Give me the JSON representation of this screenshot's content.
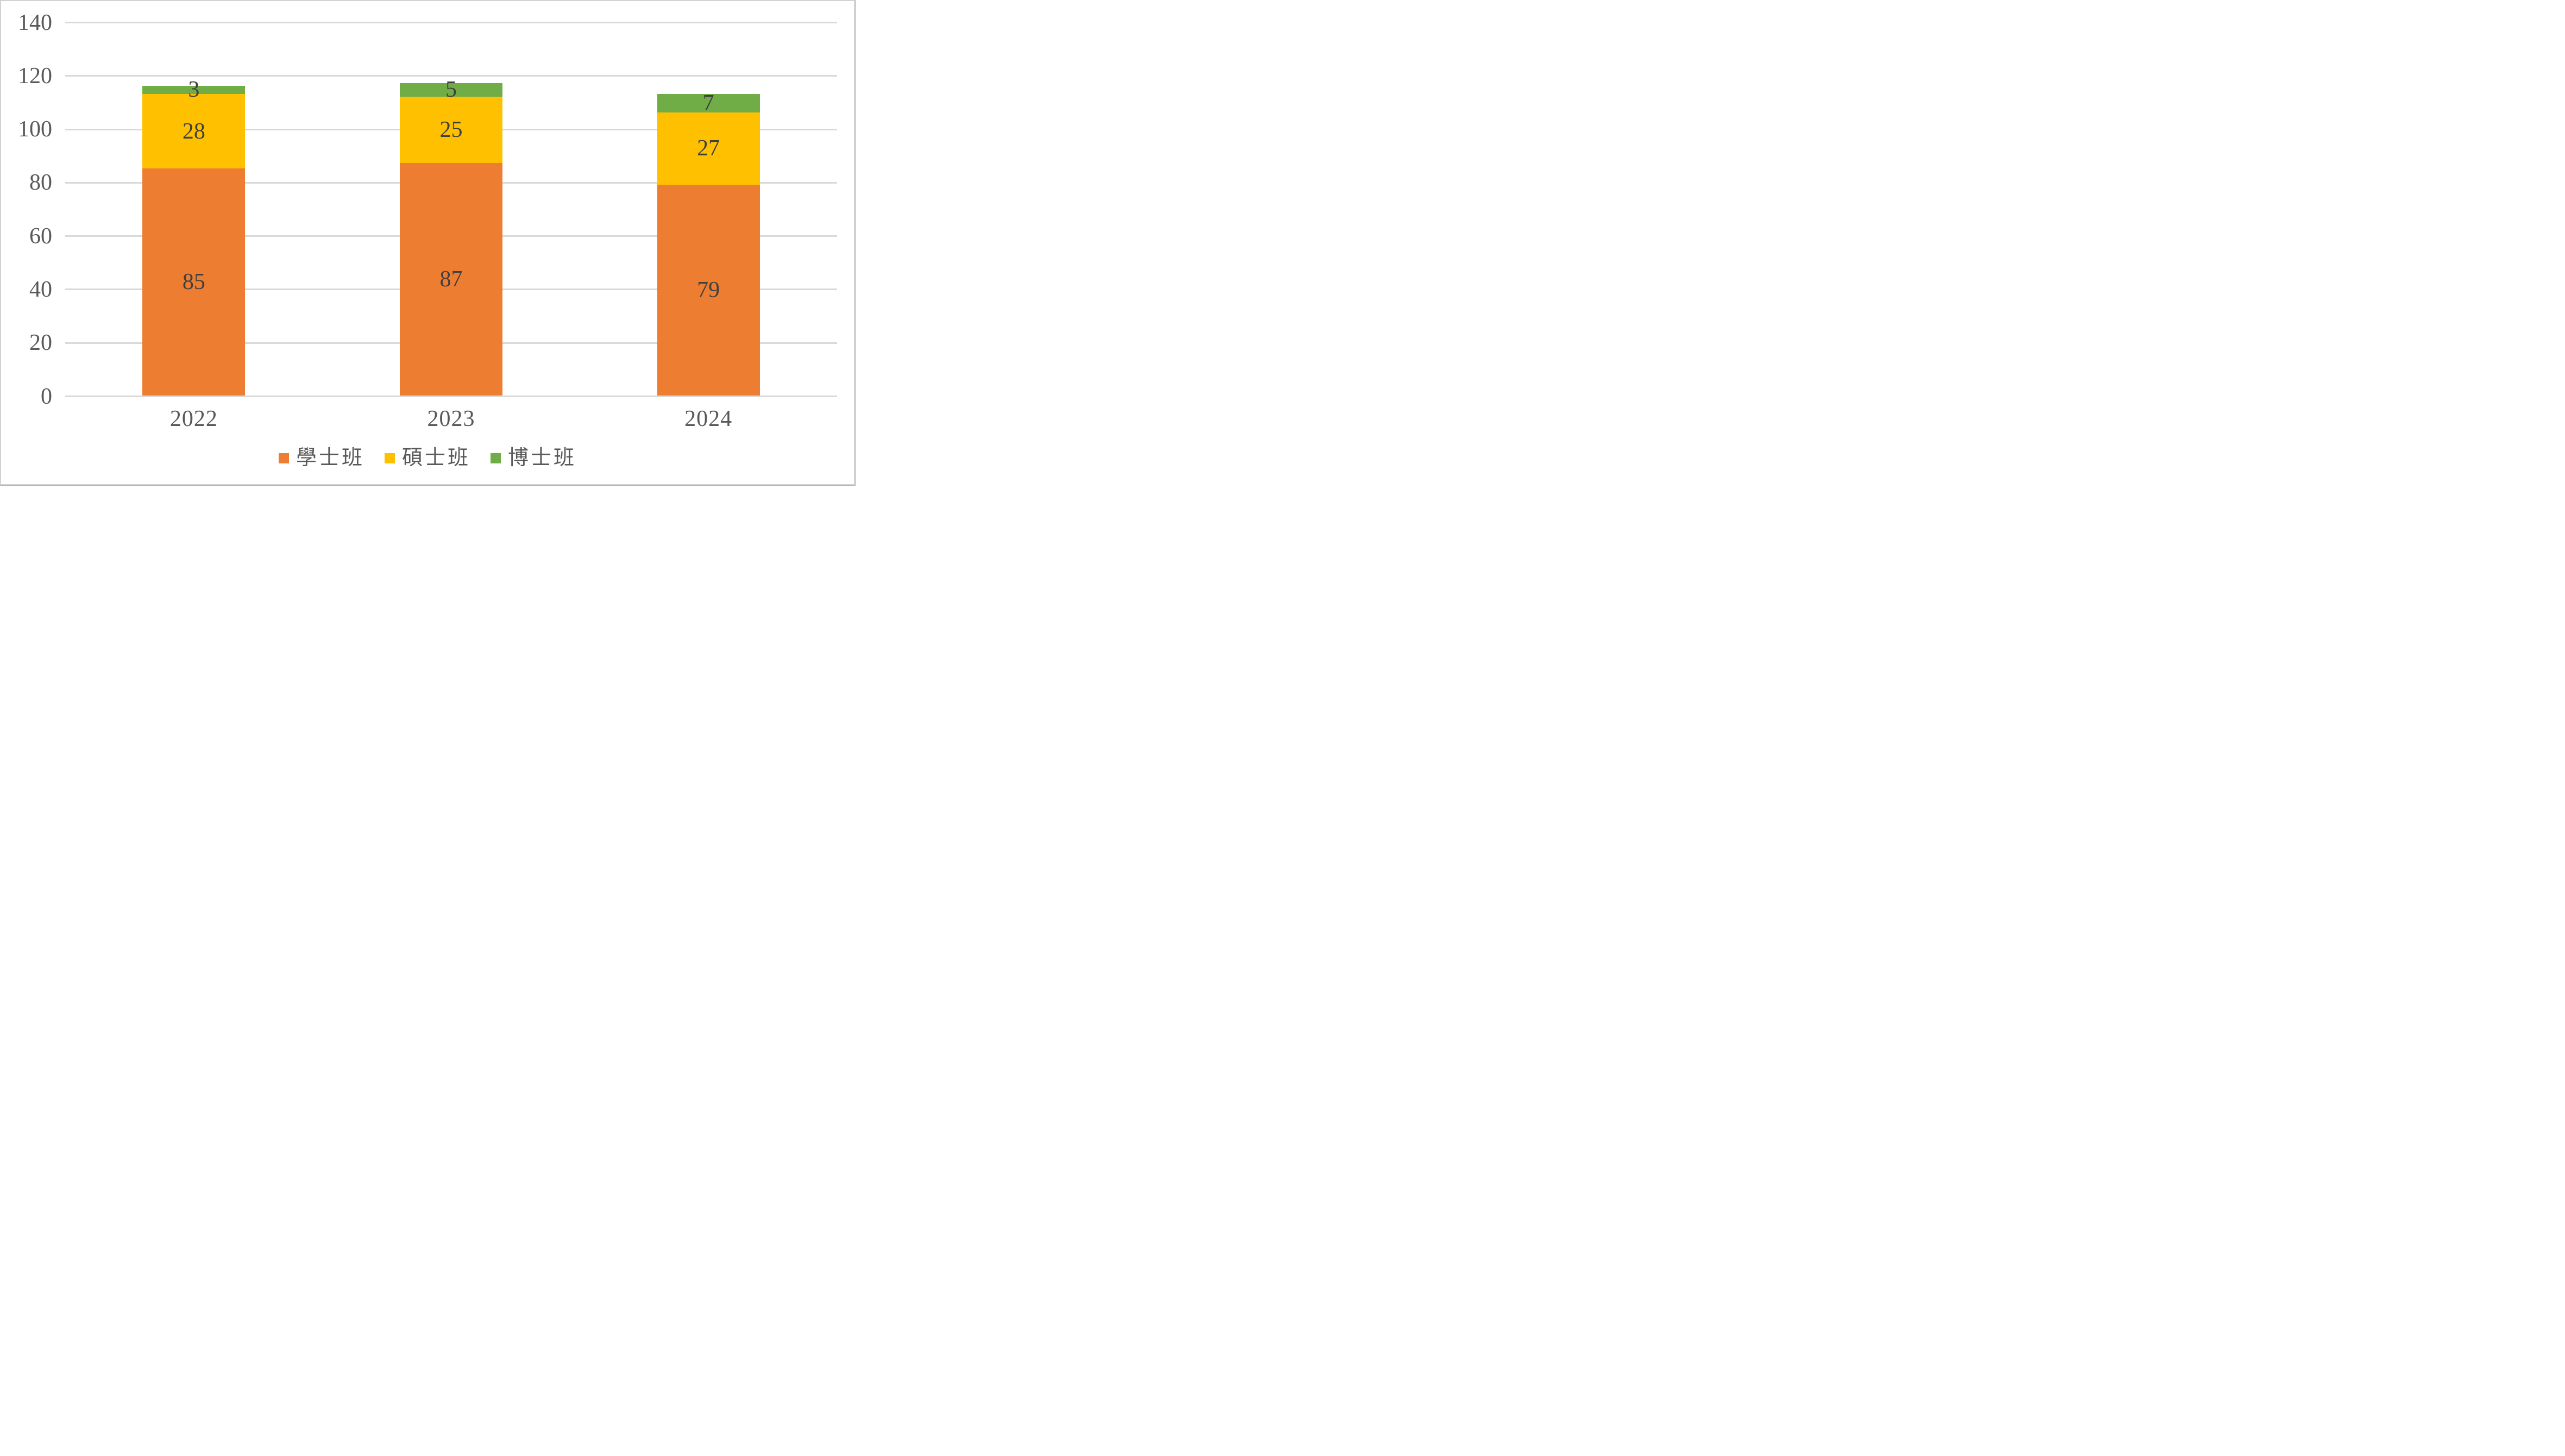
{
  "chart_data": {
    "type": "bar",
    "stacked": true,
    "title": "",
    "xlabel": "",
    "ylabel": "",
    "categories": [
      "2022",
      "2023",
      "2024"
    ],
    "series": [
      {
        "name": "學士班",
        "color": "#ED7D31",
        "values": [
          85,
          87,
          79
        ]
      },
      {
        "name": "碩士班",
        "color": "#FFC000",
        "values": [
          28,
          25,
          27
        ]
      },
      {
        "name": "博士班",
        "color": "#70AD47",
        "values": [
          3,
          5,
          7
        ]
      }
    ],
    "totals": [
      116,
      117,
      113
    ],
    "ylim": [
      0,
      140
    ],
    "yticks": [
      0,
      20,
      40,
      60,
      80,
      100,
      120,
      140
    ],
    "grid": true,
    "legend_position": "bottom",
    "colors": {
      "gridline": "#D9D9D9",
      "axis_label": "#595959",
      "data_label": "#404040",
      "legend_label": "#595959",
      "background": "#FFFFFF",
      "border": "#D2D2D2"
    }
  }
}
